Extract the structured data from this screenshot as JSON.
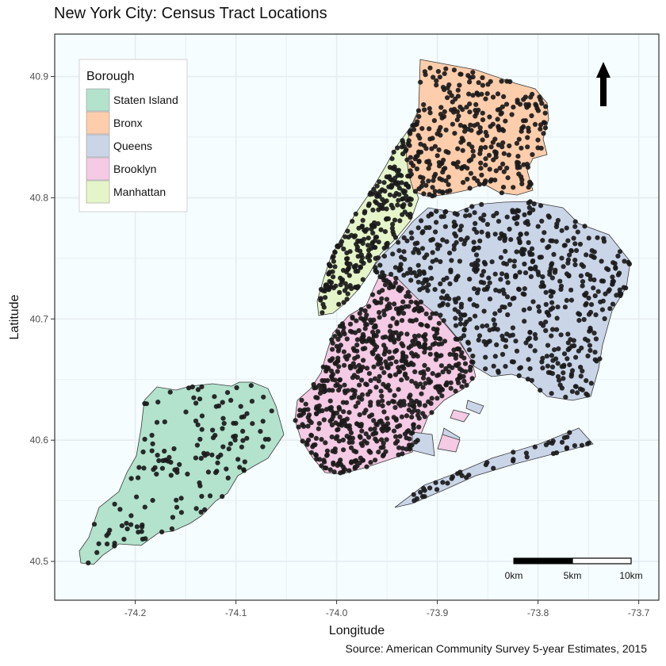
{
  "title": "New York City: Census Tract Locations",
  "caption": "Source: American Community Survey 5-year Estimates, 2015",
  "axes": {
    "xlabel": "Longitude",
    "ylabel": "Latitude",
    "x_ticks": [
      -74.2,
      -74.1,
      -74.0,
      -73.9,
      -73.8,
      -73.7
    ],
    "x_tick_labels": [
      "-74.2",
      "-74.1",
      "-74.0",
      "-73.9",
      "-73.8",
      "-73.7"
    ],
    "y_ticks": [
      40.5,
      40.6,
      40.7,
      40.8,
      40.9
    ],
    "y_tick_labels": [
      "40.5",
      "40.6",
      "40.7",
      "40.8",
      "40.9"
    ],
    "xlim": [
      -74.28,
      -73.68
    ],
    "ylim": [
      40.468,
      40.935
    ]
  },
  "legend": {
    "title": "Borough",
    "items": [
      {
        "label": "Staten Island",
        "color": "#b3e2cd"
      },
      {
        "label": "Bronx",
        "color": "#fdcdac"
      },
      {
        "label": "Queens",
        "color": "#cbd5e8"
      },
      {
        "label": "Brooklyn",
        "color": "#f4cae4"
      },
      {
        "label": "Manhattan",
        "color": "#e6f5c9"
      }
    ]
  },
  "scale_bar": {
    "labels": [
      "0km",
      "5km",
      "10km"
    ]
  },
  "colors": {
    "panel_background": "#f5fdff",
    "grid": "#e6ecef",
    "point": "#1a1a1a",
    "border": "#333333"
  },
  "north_arrow": "north-arrow-icon"
}
